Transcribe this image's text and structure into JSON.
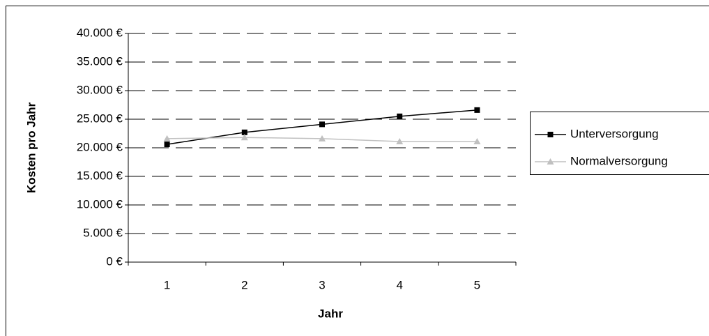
{
  "chart_data": {
    "type": "line",
    "x_label": "Jahr",
    "y_label": "Kosten pro Jahr",
    "categories": [
      "1",
      "2",
      "3",
      "4",
      "5"
    ],
    "series": [
      {
        "name": "Unterversorgung",
        "color": "#000000",
        "marker": "square",
        "values": [
          20600,
          22700,
          24100,
          25500,
          26600
        ]
      },
      {
        "name": "Normalversorgung",
        "color": "#c0c0c0",
        "marker": "triangle",
        "values": [
          21600,
          21800,
          21600,
          21100,
          21100
        ]
      }
    ],
    "ylim": [
      0,
      40000
    ],
    "yticks": [
      {
        "value": 0,
        "label": "0 €"
      },
      {
        "value": 5000,
        "label": "5.000 €"
      },
      {
        "value": 10000,
        "label": "10.000 €"
      },
      {
        "value": 15000,
        "label": "15.000 €"
      },
      {
        "value": 20000,
        "label": "20.000 €"
      },
      {
        "value": 25000,
        "label": "25.000 €"
      },
      {
        "value": 30000,
        "label": "30.000 €"
      },
      {
        "value": 35000,
        "label": "35.000 €"
      },
      {
        "value": 40000,
        "label": "40.000 €"
      }
    ],
    "grid": true,
    "legend": "right"
  }
}
